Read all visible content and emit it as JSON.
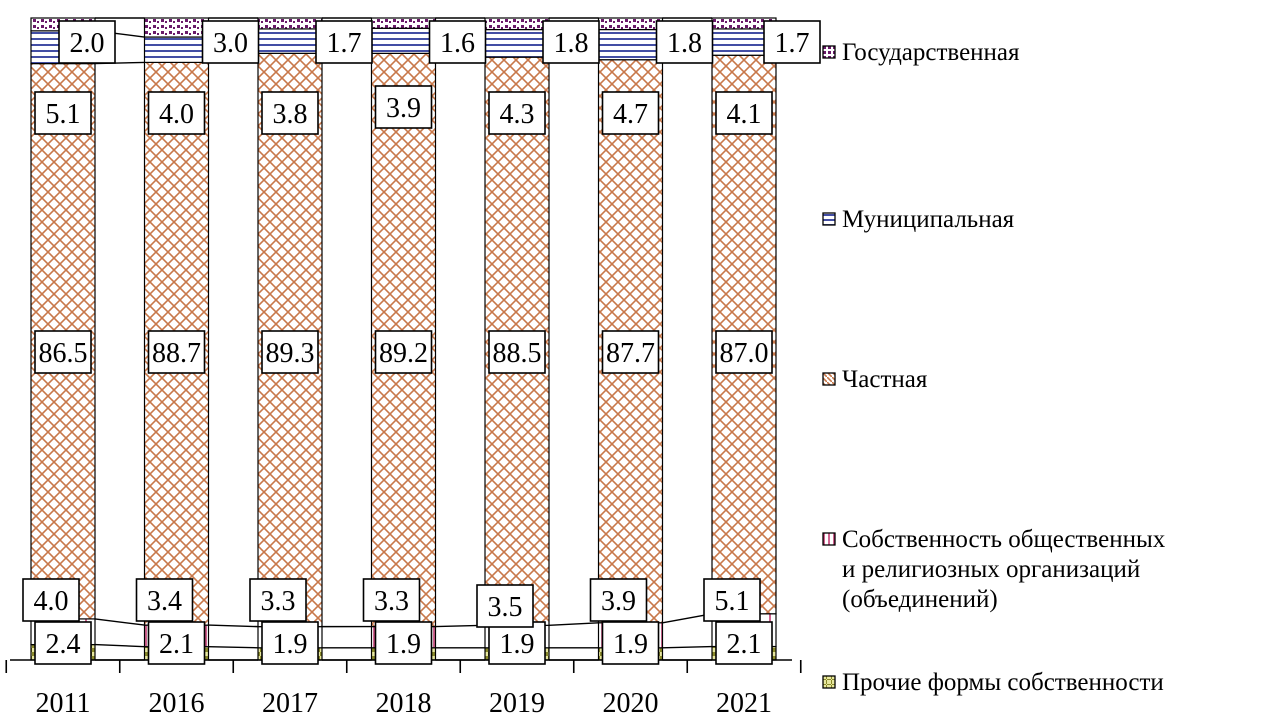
{
  "chart_data": {
    "type": "bar",
    "stacked": true,
    "normalized": true,
    "categories": [
      "2011",
      "2016",
      "2017",
      "2018",
      "2019",
      "2020",
      "2021"
    ],
    "ylim": [
      0,
      100
    ],
    "series": [
      {
        "name": "Прочие формы собственности",
        "values": [
          2.4,
          2.1,
          1.9,
          1.9,
          1.9,
          1.9,
          2.1
        ],
        "pattern": "checker",
        "color": "#8a8a2a"
      },
      {
        "name": "Собственность общественных и религиозных организаций (объединений)",
        "values": [
          4.0,
          3.4,
          3.3,
          3.3,
          3.5,
          3.9,
          5.1
        ],
        "pattern": "vertical",
        "color": "#c0306a"
      },
      {
        "name": "Частная",
        "values": [
          86.5,
          88.7,
          89.3,
          89.2,
          88.5,
          87.7,
          87.0
        ],
        "pattern": "crosshatch",
        "color": "#c8784a"
      },
      {
        "name": "Муниципальная",
        "values": [
          5.1,
          4.0,
          3.8,
          3.9,
          4.3,
          4.7,
          4.1
        ],
        "pattern": "horizontal",
        "color": "#2e3a9a"
      },
      {
        "name": "Государственная",
        "values": [
          2.0,
          3.0,
          1.7,
          1.6,
          1.8,
          1.8,
          1.7
        ],
        "pattern": "dots",
        "color": "#6a1a6a"
      }
    ],
    "legend_position": "right",
    "legend_order": [
      "Государственная",
      "Муниципальная",
      "Частная",
      "Собственность общественных\nи религиозных организаций\n(объединений)",
      "Прочие формы собственности"
    ],
    "data_labels": true,
    "grid": false
  }
}
